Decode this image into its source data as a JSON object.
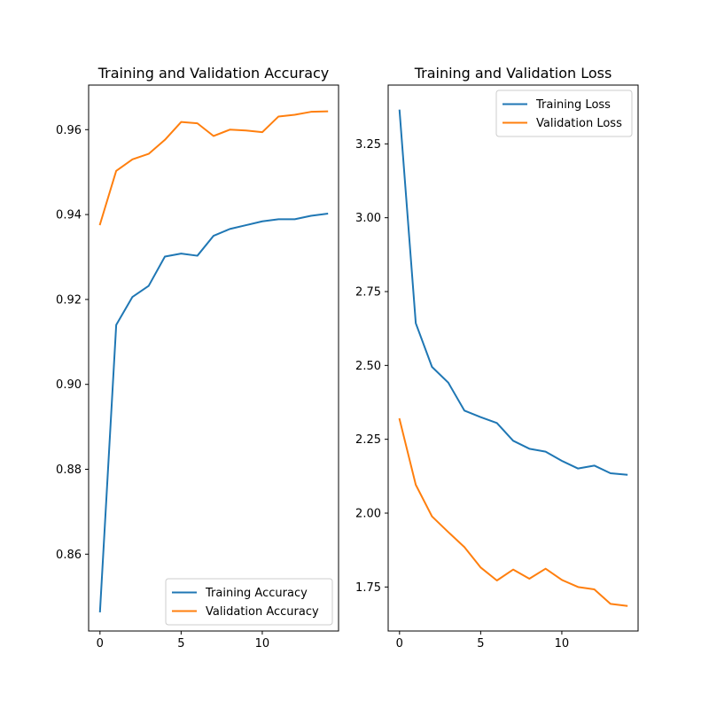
{
  "chart_data": [
    {
      "type": "line",
      "title": "Training and Validation Accuracy",
      "xlabel": "",
      "ylabel": "",
      "grid": false,
      "legend_position": "lower-right",
      "xlim": [
        -0.7,
        14.7
      ],
      "ylim": [
        0.8419,
        0.9705
      ],
      "xticks": [
        0,
        5,
        10
      ],
      "xtick_labels": [
        "0",
        "5",
        "10"
      ],
      "yticks": [
        0.86,
        0.88,
        0.9,
        0.92,
        0.94,
        0.96
      ],
      "ytick_labels": [
        "0.86",
        "0.88",
        "0.90",
        "0.92",
        "0.94",
        "0.96"
      ],
      "x": [
        0,
        1,
        2,
        3,
        4,
        5,
        6,
        7,
        8,
        9,
        10,
        11,
        12,
        13,
        14
      ],
      "series": [
        {
          "name": "Training Accuracy",
          "color": "#1f77b4",
          "values": [
            0.8465,
            0.914,
            0.9206,
            0.9232,
            0.9301,
            0.9308,
            0.9303,
            0.935,
            0.9366,
            0.9375,
            0.9384,
            0.9389,
            0.9389,
            0.9397,
            0.9402
          ]
        },
        {
          "name": "Validation Accuracy",
          "color": "#ff7f0e",
          "values": [
            0.9377,
            0.9503,
            0.953,
            0.9543,
            0.9576,
            0.9618,
            0.9615,
            0.9585,
            0.96,
            0.9598,
            0.9594,
            0.9631,
            0.9635,
            0.9642,
            0.9643
          ]
        }
      ]
    },
    {
      "type": "line",
      "title": "Training and Validation Loss",
      "xlabel": "",
      "ylabel": "",
      "grid": false,
      "legend_position": "upper-right",
      "xlim": [
        -0.7,
        14.7
      ],
      "ylim": [
        1.601,
        3.449
      ],
      "xticks": [
        0,
        5,
        10
      ],
      "xtick_labels": [
        "0",
        "5",
        "10"
      ],
      "yticks": [
        1.75,
        2.0,
        2.25,
        2.5,
        2.75,
        3.0,
        3.25
      ],
      "ytick_labels": [
        "1.75",
        "2.00",
        "2.25",
        "2.50",
        "2.75",
        "3.00",
        "3.25"
      ],
      "x": [
        0,
        1,
        2,
        3,
        4,
        5,
        6,
        7,
        8,
        9,
        10,
        11,
        12,
        13,
        14
      ],
      "series": [
        {
          "name": "Training Loss",
          "color": "#1f77b4",
          "values": [
            3.363,
            2.643,
            2.495,
            2.442,
            2.347,
            2.325,
            2.305,
            2.245,
            2.218,
            2.208,
            2.177,
            2.151,
            2.161,
            2.135,
            2.13
          ]
        },
        {
          "name": "Validation Loss",
          "color": "#ff7f0e",
          "values": [
            2.318,
            2.096,
            1.989,
            1.936,
            1.885,
            1.816,
            1.772,
            1.809,
            1.778,
            1.812,
            1.774,
            1.75,
            1.742,
            1.693,
            1.686
          ]
        }
      ]
    }
  ]
}
